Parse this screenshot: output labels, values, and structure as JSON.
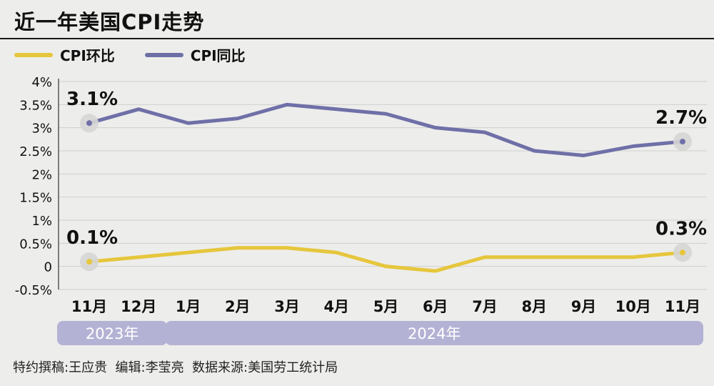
{
  "page": {
    "title": "近一年美国CPI走势",
    "footer": "特约撰稿:王应贵  编辑:李莹亮  数据来源:美国劳工统计局"
  },
  "colors": {
    "mom": "#e6c63c",
    "yoy": "#6f6fa8",
    "grid": "#cfcfcf",
    "marker": "#d5d5d5",
    "year_band": "#b4b2d4"
  },
  "chart_data": {
    "type": "line",
    "title": "近一年美国CPI走势",
    "categories": [
      "11月",
      "12月",
      "1月",
      "2月",
      "3月",
      "4月",
      "5月",
      "6月",
      "7月",
      "8月",
      "9月",
      "10月",
      "11月"
    ],
    "year_groups": [
      {
        "label": "2023年",
        "from_index": 0,
        "to_index": 1
      },
      {
        "label": "2024年",
        "from_index": 2,
        "to_index": 12
      }
    ],
    "yticks": [
      {
        "value": 4,
        "label": "4%"
      },
      {
        "value": 3.5,
        "label": "3.5%"
      },
      {
        "value": 3,
        "label": "3%"
      },
      {
        "value": 2.5,
        "label": "2.5%"
      },
      {
        "value": 2,
        "label": "2%"
      },
      {
        "value": 1.5,
        "label": "1.5%"
      },
      {
        "value": 1,
        "label": "1%"
      },
      {
        "value": 0.5,
        "label": "0.5%"
      },
      {
        "value": 0,
        "label": "0"
      },
      {
        "value": -0.5,
        "label": "-0.5%"
      }
    ],
    "ylim": [
      -0.5,
      4
    ],
    "grid": true,
    "legend_position": "top-left",
    "series": [
      {
        "key": "mom",
        "name": "CPI环比",
        "values": [
          0.1,
          0.2,
          0.3,
          0.4,
          0.4,
          0.3,
          0.0,
          -0.1,
          0.2,
          0.2,
          0.2,
          0.2,
          0.3
        ],
        "annotations": [
          {
            "index": 0,
            "label": "0.1%"
          },
          {
            "index": 12,
            "label": "0.3%"
          }
        ]
      },
      {
        "key": "yoy",
        "name": "CPI同比",
        "values": [
          3.1,
          3.4,
          3.1,
          3.2,
          3.5,
          3.4,
          3.3,
          3.0,
          2.9,
          2.5,
          2.4,
          2.6,
          2.7
        ],
        "annotations": [
          {
            "index": 0,
            "label": "3.1%"
          },
          {
            "index": 12,
            "label": "2.7%"
          }
        ]
      }
    ]
  }
}
